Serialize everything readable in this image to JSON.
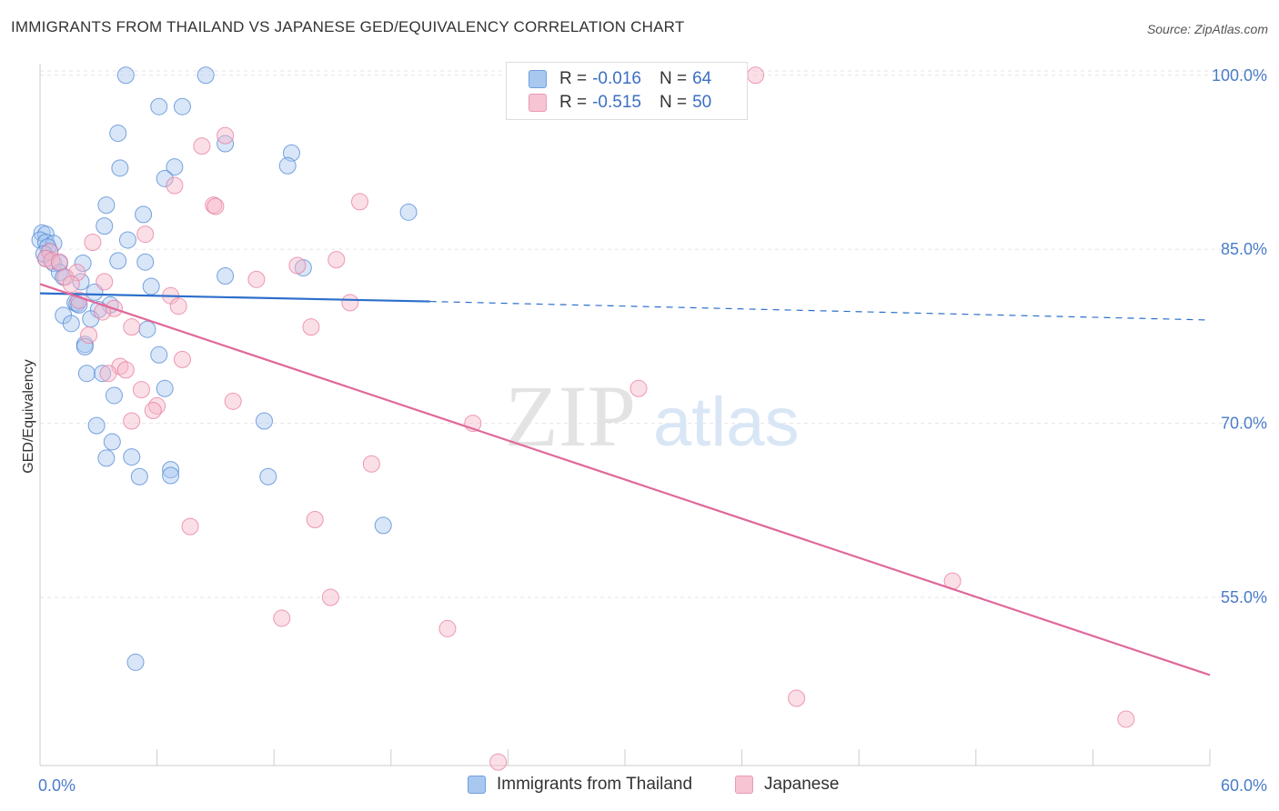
{
  "header": {
    "title": "IMMIGRANTS FROM THAILAND VS JAPANESE GED/EQUIVALENCY CORRELATION CHART",
    "source": "Source: ZipAtlas.com"
  },
  "watermark": {
    "zip": "ZIP",
    "atlas": "atlas"
  },
  "legend": {
    "rows": [
      {
        "r_label": "R =",
        "r_value": "-0.016",
        "n_label": "N =",
        "n_value": "64",
        "color": "#a9c8f0"
      },
      {
        "r_label": "R =",
        "r_value": "-0.515",
        "n_label": "N =",
        "n_value": "50",
        "color": "#f6b8ca"
      }
    ]
  },
  "bottom_legend": {
    "items": [
      {
        "label": "Immigrants from Thailand",
        "color": "#a9c8f0"
      },
      {
        "label": "Japanese",
        "color": "#f6b8ca"
      }
    ]
  },
  "chart_data": {
    "type": "scatter",
    "title": "IMMIGRANTS FROM THAILAND VS JAPANESE GED/EQUIVALENCY CORRELATION CHART",
    "xlabel": "",
    "ylabel": "GED/Equivalency",
    "xlim": [
      0,
      60
    ],
    "ylim": [
      40.5,
      101
    ],
    "x_tick_labels": [
      "0.0%",
      "60.0%"
    ],
    "y_ticks": [
      55,
      70,
      85,
      100
    ],
    "y_tick_labels": [
      "55.0%",
      "70.0%",
      "85.0%",
      "100.0%"
    ],
    "grid": true,
    "legend_position": "top-center",
    "series": [
      {
        "name": "Immigrants from Thailand",
        "color": "#4f86d6",
        "fill": "#a9c8f0",
        "trend": {
          "x": [
            0,
            20
          ],
          "y": [
            81.2,
            80.5
          ],
          "dashed_to": [
            60,
            78.9
          ],
          "color": "#2c6fcb"
        },
        "points": [
          [
            4.4,
            100
          ],
          [
            8.5,
            100
          ],
          [
            6.1,
            97.3
          ],
          [
            7.3,
            97.3
          ],
          [
            4.0,
            95.0
          ],
          [
            9.5,
            94.1
          ],
          [
            12.9,
            93.3
          ],
          [
            4.1,
            92.0
          ],
          [
            6.9,
            92.1
          ],
          [
            12.7,
            92.2
          ],
          [
            6.4,
            91.1
          ],
          [
            3.4,
            88.8
          ],
          [
            5.3,
            88.0
          ],
          [
            18.9,
            88.2
          ],
          [
            3.3,
            87.0
          ],
          [
            0.1,
            86.4
          ],
          [
            0.3,
            86.3
          ],
          [
            0.0,
            85.8
          ],
          [
            0.3,
            85.6
          ],
          [
            0.7,
            85.5
          ],
          [
            4.5,
            85.8
          ],
          [
            0.4,
            85.2
          ],
          [
            0.5,
            84.8
          ],
          [
            0.3,
            84.2
          ],
          [
            0.7,
            83.8
          ],
          [
            1.0,
            83.8
          ],
          [
            4.0,
            84.0
          ],
          [
            5.4,
            83.9
          ],
          [
            2.2,
            83.8
          ],
          [
            13.5,
            83.4
          ],
          [
            1.0,
            83.0
          ],
          [
            1.2,
            82.6
          ],
          [
            9.5,
            82.7
          ],
          [
            2.1,
            82.2
          ],
          [
            5.7,
            81.8
          ],
          [
            2.8,
            81.3
          ],
          [
            1.8,
            80.4
          ],
          [
            1.9,
            80.3
          ],
          [
            2.0,
            80.2
          ],
          [
            3.6,
            80.2
          ],
          [
            3.0,
            79.8
          ],
          [
            1.2,
            79.3
          ],
          [
            2.6,
            79.0
          ],
          [
            1.6,
            78.6
          ],
          [
            5.5,
            78.1
          ],
          [
            2.3,
            76.8
          ],
          [
            2.3,
            76.6
          ],
          [
            6.1,
            75.9
          ],
          [
            2.4,
            74.3
          ],
          [
            3.2,
            74.3
          ],
          [
            6.4,
            73.0
          ],
          [
            3.8,
            72.4
          ],
          [
            11.5,
            70.2
          ],
          [
            2.9,
            69.8
          ],
          [
            3.7,
            68.4
          ],
          [
            3.4,
            67.0
          ],
          [
            4.7,
            67.1
          ],
          [
            6.7,
            66.0
          ],
          [
            5.1,
            65.4
          ],
          [
            6.7,
            65.5
          ],
          [
            11.7,
            65.4
          ],
          [
            17.6,
            61.2
          ],
          [
            4.9,
            49.4
          ],
          [
            0.2,
            84.6
          ]
        ]
      },
      {
        "name": "Japanese",
        "color": "#e8799c",
        "fill": "#f6b8ca",
        "trend": {
          "x": [
            0,
            60
          ],
          "y": [
            82.0,
            48.3
          ],
          "color": "#e0689a"
        },
        "points": [
          [
            36.7,
            100
          ],
          [
            9.5,
            94.8
          ],
          [
            8.3,
            93.9
          ],
          [
            6.9,
            90.5
          ],
          [
            8.9,
            88.8
          ],
          [
            9.0,
            88.7
          ],
          [
            16.4,
            89.1
          ],
          [
            5.4,
            86.3
          ],
          [
            2.7,
            85.6
          ],
          [
            0.5,
            84.8
          ],
          [
            0.3,
            84.2
          ],
          [
            0.6,
            84.0
          ],
          [
            1.0,
            83.9
          ],
          [
            15.2,
            84.1
          ],
          [
            13.2,
            83.6
          ],
          [
            1.9,
            83.0
          ],
          [
            1.3,
            82.6
          ],
          [
            11.1,
            82.4
          ],
          [
            3.3,
            82.2
          ],
          [
            1.6,
            82.0
          ],
          [
            6.7,
            81.0
          ],
          [
            2.0,
            80.6
          ],
          [
            7.1,
            80.1
          ],
          [
            15.9,
            80.4
          ],
          [
            3.8,
            79.9
          ],
          [
            3.2,
            79.6
          ],
          [
            4.7,
            78.3
          ],
          [
            13.9,
            78.3
          ],
          [
            2.5,
            77.6
          ],
          [
            7.3,
            75.5
          ],
          [
            4.1,
            74.9
          ],
          [
            4.4,
            74.6
          ],
          [
            3.5,
            74.3
          ],
          [
            30.7,
            73.0
          ],
          [
            5.2,
            72.9
          ],
          [
            9.9,
            71.9
          ],
          [
            6.0,
            71.5
          ],
          [
            5.8,
            71.1
          ],
          [
            4.7,
            70.2
          ],
          [
            22.2,
            70.0
          ],
          [
            17.0,
            66.5
          ],
          [
            7.7,
            61.1
          ],
          [
            14.1,
            61.7
          ],
          [
            14.9,
            55.0
          ],
          [
            12.4,
            53.2
          ],
          [
            20.9,
            52.3
          ],
          [
            46.8,
            56.4
          ],
          [
            38.8,
            46.3
          ],
          [
            55.7,
            44.5
          ],
          [
            23.5,
            40.8
          ]
        ]
      }
    ]
  }
}
